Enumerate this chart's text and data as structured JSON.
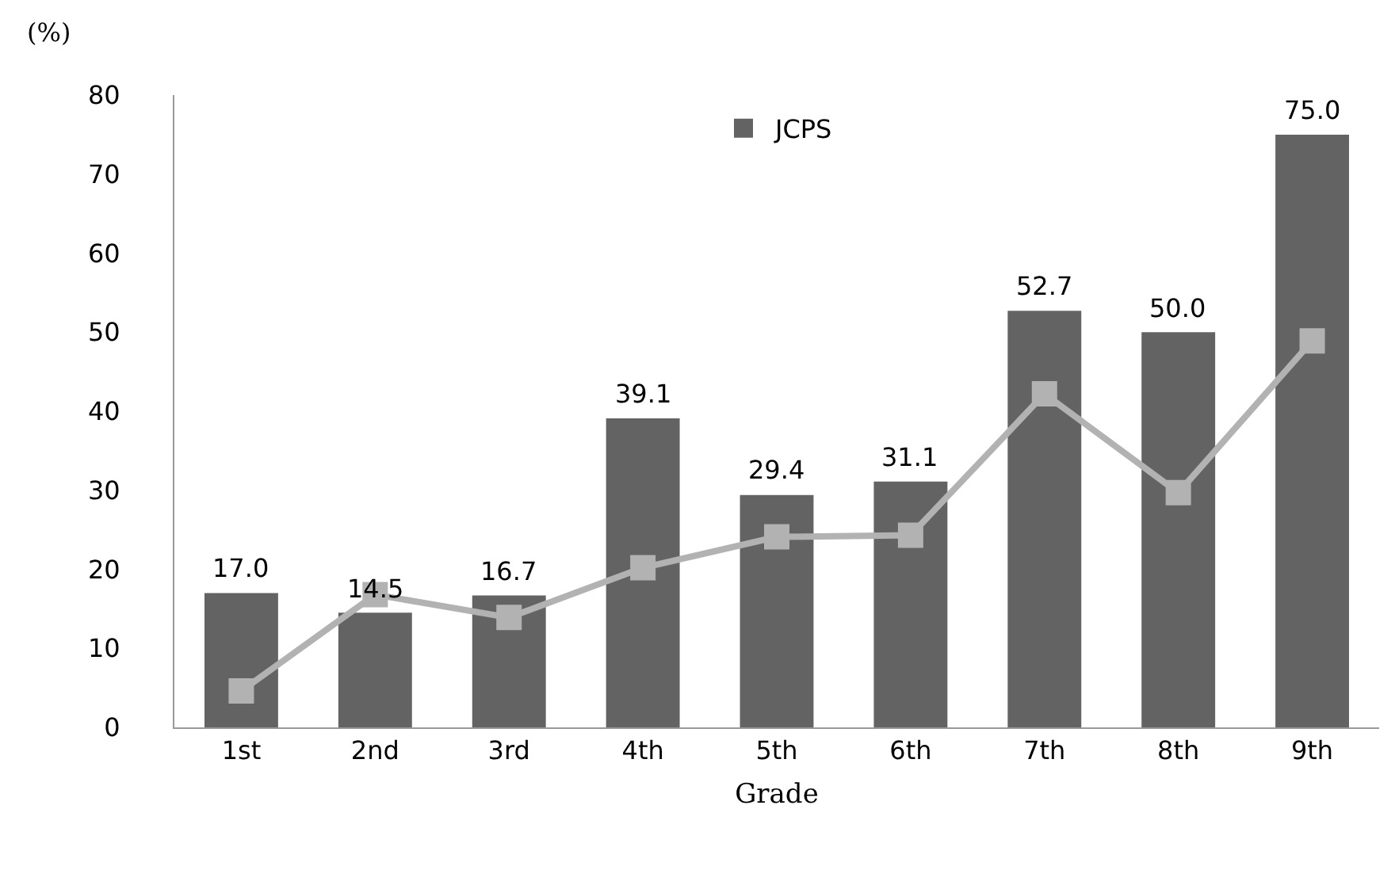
{
  "chart_data": {
    "type": "bar",
    "xlabel": "Grade",
    "ylabel": "(%)",
    "categories": [
      "1st",
      "2nd",
      "3rd",
      "4th",
      "5th",
      "6th",
      "7th",
      "8th",
      "9th"
    ],
    "series": [
      {
        "name": "JCPS",
        "color": "#636363",
        "values": [
          17.0,
          14.5,
          16.7,
          39.1,
          29.4,
          31.1,
          52.7,
          50.0,
          75.0
        ],
        "value_labels": [
          "17.0",
          "14.5",
          "16.7",
          "39.1",
          "29.4",
          "31.1",
          "52.7",
          "50.0",
          "75.0"
        ]
      },
      {
        "type": "line",
        "color": "#b2b2b2",
        "marker": "square",
        "line_style": "solid",
        "values": [
          4.6,
          16.8,
          13.9,
          20.2,
          24.1,
          24.3,
          42.2,
          29.7,
          48.9
        ]
      }
    ],
    "ylim": [
      0,
      80
    ],
    "yticks": [
      0,
      10,
      20,
      30,
      40,
      50,
      60,
      70,
      80
    ],
    "grid": false,
    "legend": "top"
  }
}
